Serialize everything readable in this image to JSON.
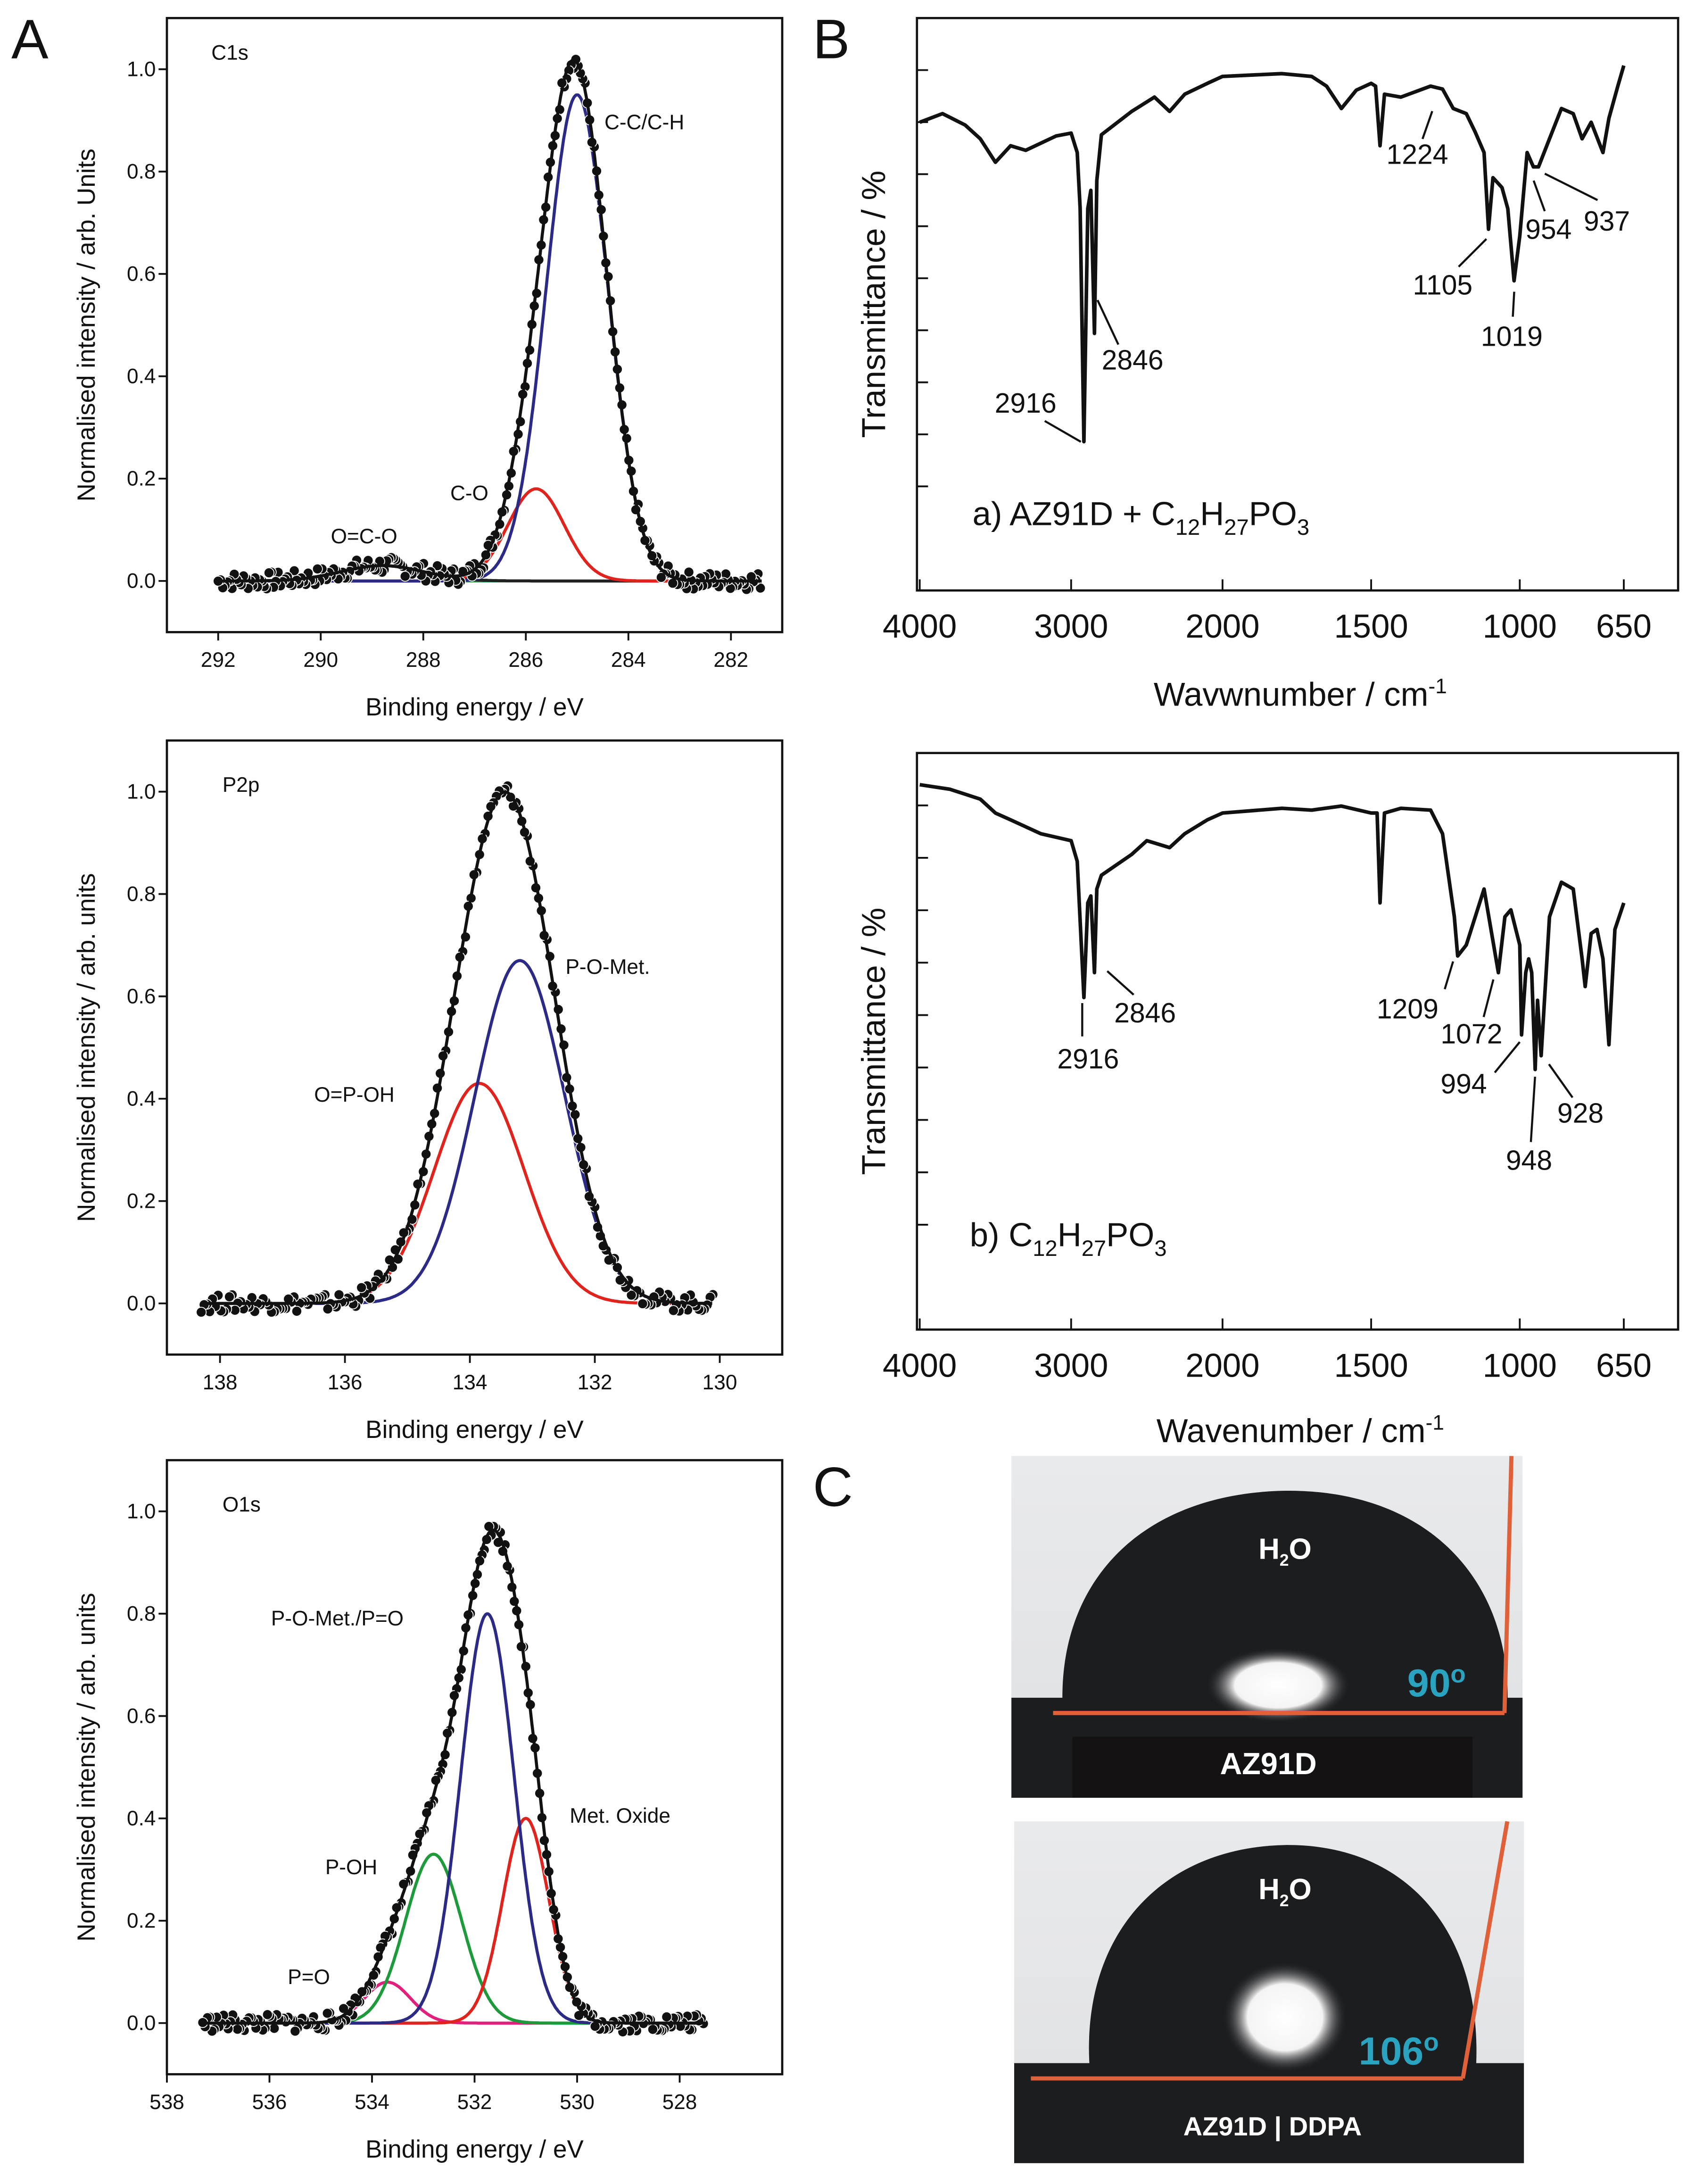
{
  "panel_letters": {
    "a": "A",
    "b": "B",
    "c": "C"
  },
  "chart_data": [
    {
      "id": "c1s",
      "type": "scatter+line",
      "title": "C1s",
      "xlabel": "Binding energy / eV",
      "ylabel": "Normalised intensity / arb. Units",
      "xlim": [
        293,
        281
      ],
      "ylim": [
        -0.1,
        1.1
      ],
      "xticks": [
        292,
        290,
        288,
        286,
        284,
        282
      ],
      "yticks": [
        0.0,
        0.2,
        0.4,
        0.6,
        0.8,
        1.0
      ],
      "series": [
        {
          "name": "C-C/C-H",
          "center": 285.0,
          "amplitude": 0.95,
          "sigma": 0.6,
          "color": "#2b2a86"
        },
        {
          "name": "C-O",
          "center": 285.8,
          "amplitude": 0.18,
          "sigma": 0.55,
          "color": "#e0231c"
        },
        {
          "name": "O=C-O",
          "center": 288.8,
          "amplitude": 0.03,
          "sigma": 0.8,
          "color": "#222222"
        }
      ],
      "baseline_color": "#1d9a3a",
      "data_range": [
        292,
        281.4
      ]
    },
    {
      "id": "p2p",
      "type": "scatter+line",
      "title": "P2p",
      "xlabel": "Binding energy / eV",
      "ylabel": "Normalised intensity / arb. units",
      "xlim": [
        138.85,
        129
      ],
      "ylim": [
        -0.1,
        1.1
      ],
      "xticks": [
        138,
        136,
        134,
        132,
        130
      ],
      "yticks": [
        0.0,
        0.2,
        0.4,
        0.6,
        0.8,
        1.0
      ],
      "series": [
        {
          "name": "P-O-Met.",
          "center": 133.2,
          "amplitude": 0.67,
          "sigma": 0.72,
          "color": "#2b2a86"
        },
        {
          "name": "O=P-OH",
          "center": 133.85,
          "amplitude": 0.43,
          "sigma": 0.72,
          "color": "#e0231c"
        }
      ],
      "data_range": [
        138.3,
        130.1
      ]
    },
    {
      "id": "o1s",
      "type": "scatter+line",
      "title": "O1s",
      "xlabel": "Binding energy / eV",
      "ylabel": "Normalised intensity / arb. units",
      "xlim": [
        538,
        526
      ],
      "ylim": [
        -0.1,
        1.1
      ],
      "xticks": [
        538,
        536,
        534,
        532,
        530,
        528
      ],
      "yticks": [
        0.0,
        0.2,
        0.4,
        0.6,
        0.8,
        1.0
      ],
      "series": [
        {
          "name": "P-O-Met./P=O",
          "center": 531.75,
          "amplitude": 0.8,
          "sigma": 0.52,
          "color": "#2b2a86"
        },
        {
          "name": "Met. Oxide",
          "center": 531.0,
          "amplitude": 0.4,
          "sigma": 0.45,
          "color": "#e0231c"
        },
        {
          "name": "P-OH",
          "center": 532.8,
          "amplitude": 0.33,
          "sigma": 0.55,
          "color": "#1d9a3a"
        },
        {
          "name": "P=O",
          "center": 533.7,
          "amplitude": 0.08,
          "sigma": 0.45,
          "color": "#e0207a"
        }
      ],
      "data_range": [
        537.3,
        527.5
      ]
    },
    {
      "id": "ftir_a",
      "type": "line",
      "xlabel": "Wavwnumber / cm",
      "xlabel_sup": "-1",
      "ylabel": "Transmittance / %",
      "xticks": [
        4000,
        3000,
        2000,
        1500,
        1000,
        650
      ],
      "ylim": [
        0,
        100
      ],
      "legend": {
        "prefix": "a) AZ91D + C",
        "s1": "12",
        "h": "H",
        "s2": "27",
        "po": "PO",
        "s3": "3"
      },
      "annotations": [
        "2916",
        "2846",
        "1224",
        "1105",
        "1019",
        "954",
        "937"
      ],
      "points": [
        [
          4000,
          81.8
        ],
        [
          3850,
          83.3
        ],
        [
          3700,
          81.3
        ],
        [
          3600,
          78.9
        ],
        [
          3500,
          74.8
        ],
        [
          3400,
          77.7
        ],
        [
          3300,
          76.9
        ],
        [
          3100,
          79.4
        ],
        [
          3000,
          79.9
        ],
        [
          2960,
          76.5
        ],
        [
          2940,
          66.7
        ],
        [
          2916,
          26.0
        ],
        [
          2890,
          66.7
        ],
        [
          2870,
          69.9
        ],
        [
          2846,
          44.9
        ],
        [
          2830,
          71.6
        ],
        [
          2800,
          79.6
        ],
        [
          2600,
          83.7
        ],
        [
          2450,
          86.2
        ],
        [
          2350,
          83.7
        ],
        [
          2250,
          86.7
        ],
        [
          2100,
          88.6
        ],
        [
          2000,
          89.8
        ],
        [
          1800,
          90.3
        ],
        [
          1700,
          89.8
        ],
        [
          1650,
          88.1
        ],
        [
          1600,
          84.2
        ],
        [
          1550,
          87.4
        ],
        [
          1500,
          88.6
        ],
        [
          1485,
          88.1
        ],
        [
          1470,
          77.7
        ],
        [
          1455,
          86.7
        ],
        [
          1400,
          86.2
        ],
        [
          1300,
          88.1
        ],
        [
          1260,
          87.6
        ],
        [
          1224,
          84.2
        ],
        [
          1180,
          83.3
        ],
        [
          1150,
          80.1
        ],
        [
          1120,
          76.5
        ],
        [
          1105,
          63.1
        ],
        [
          1090,
          72.1
        ],
        [
          1060,
          70.4
        ],
        [
          1040,
          66.7
        ],
        [
          1019,
          54.1
        ],
        [
          1000,
          61.9
        ],
        [
          975,
          76.5
        ],
        [
          954,
          74.0
        ],
        [
          937,
          74.0
        ],
        [
          900,
          78.9
        ],
        [
          860,
          84.2
        ],
        [
          820,
          83.3
        ],
        [
          790,
          78.9
        ],
        [
          760,
          81.8
        ],
        [
          720,
          76.5
        ],
        [
          700,
          82.5
        ],
        [
          670,
          88.1
        ],
        [
          650,
          91.7
        ]
      ]
    },
    {
      "id": "ftir_b",
      "type": "line",
      "xlabel": "Wavenumber / cm",
      "xlabel_sup": "-1",
      "ylabel": "Transmittance / %",
      "xticks": [
        4000,
        3000,
        2000,
        1500,
        1000,
        650
      ],
      "ylim": [
        0,
        100
      ],
      "legend": {
        "prefix": "b) C",
        "s1": "12",
        "h": "H",
        "s2": "27",
        "po": "PO",
        "s3": "3"
      },
      "annotations": [
        "2916",
        "2846",
        "1209",
        "1072",
        "994",
        "948",
        "928"
      ],
      "points": [
        [
          4000,
          94.5
        ],
        [
          3800,
          93.7
        ],
        [
          3600,
          92.0
        ],
        [
          3500,
          89.6
        ],
        [
          3400,
          88.4
        ],
        [
          3200,
          86.0
        ],
        [
          3000,
          84.8
        ],
        [
          2960,
          81.2
        ],
        [
          2916,
          57.6
        ],
        [
          2890,
          74.0
        ],
        [
          2870,
          75.2
        ],
        [
          2846,
          61.9
        ],
        [
          2830,
          76.4
        ],
        [
          2800,
          78.8
        ],
        [
          2600,
          82.4
        ],
        [
          2500,
          84.8
        ],
        [
          2350,
          83.6
        ],
        [
          2250,
          86.0
        ],
        [
          2100,
          88.4
        ],
        [
          2000,
          89.6
        ],
        [
          1800,
          90.4
        ],
        [
          1700,
          90.1
        ],
        [
          1600,
          90.8
        ],
        [
          1500,
          89.6
        ],
        [
          1480,
          89.6
        ],
        [
          1470,
          74.0
        ],
        [
          1455,
          89.6
        ],
        [
          1400,
          90.4
        ],
        [
          1300,
          90.1
        ],
        [
          1260,
          86.0
        ],
        [
          1220,
          71.6
        ],
        [
          1209,
          64.8
        ],
        [
          1180,
          66.7
        ],
        [
          1120,
          76.4
        ],
        [
          1072,
          61.9
        ],
        [
          1050,
          71.6
        ],
        [
          1030,
          72.8
        ],
        [
          1000,
          66.7
        ],
        [
          994,
          51.1
        ],
        [
          980,
          61.9
        ],
        [
          970,
          64.3
        ],
        [
          960,
          61.9
        ],
        [
          948,
          45.1
        ],
        [
          940,
          57.1
        ],
        [
          928,
          47.5
        ],
        [
          900,
          71.6
        ],
        [
          860,
          77.6
        ],
        [
          820,
          76.4
        ],
        [
          790,
          64.3
        ],
        [
          780,
          59.5
        ],
        [
          760,
          68.7
        ],
        [
          740,
          69.4
        ],
        [
          720,
          64.3
        ],
        [
          700,
          49.4
        ],
        [
          680,
          69.4
        ],
        [
          650,
          74.0
        ]
      ]
    }
  ],
  "contact_angle": {
    "top": {
      "liquid": "H",
      "liquid_sub": "2",
      "liquid_end": "O",
      "angle": "90",
      "deg": "o",
      "substrate": "AZ91D",
      "angle_value": 90
    },
    "bottom": {
      "liquid": "H",
      "liquid_sub": "2",
      "liquid_end": "O",
      "angle": "106",
      "deg": "o",
      "substrate": "AZ91D | DDPA",
      "angle_value": 106
    },
    "angle_color": "#2aa3c0",
    "line_color": "#e0603a"
  }
}
